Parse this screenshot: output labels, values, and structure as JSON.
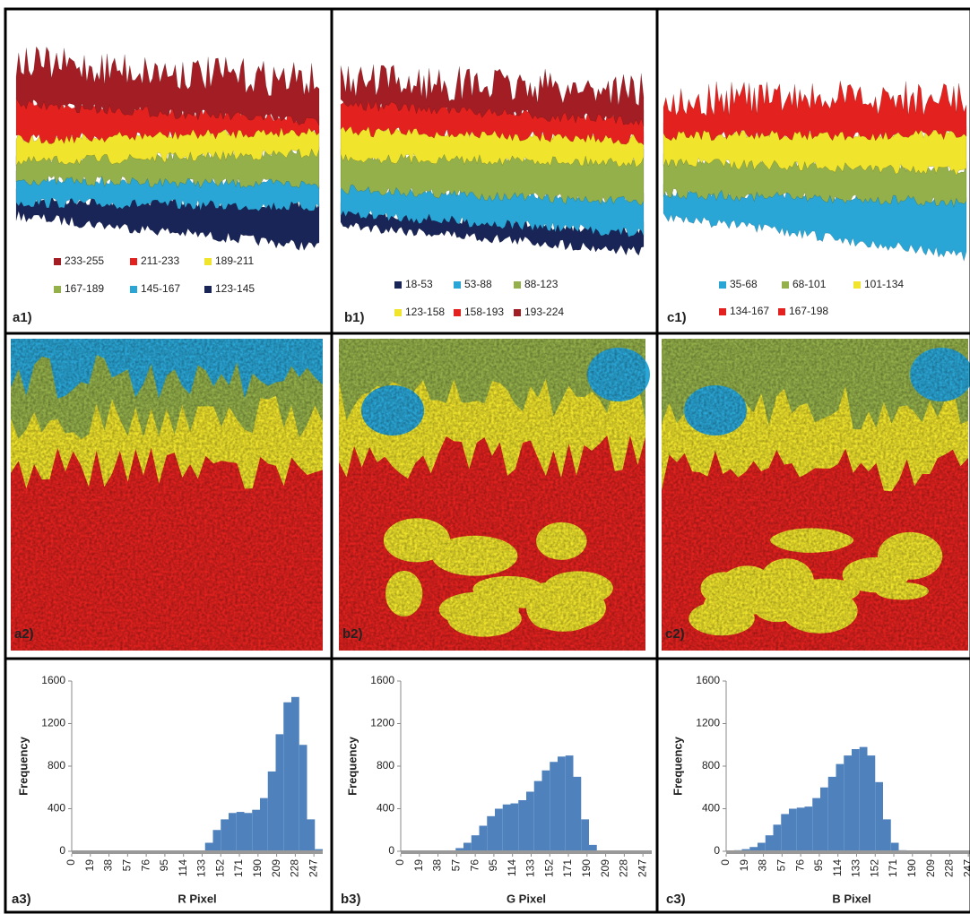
{
  "surface_plots": [
    {
      "label": "a1)",
      "legend": [
        {
          "name": "233-255",
          "color": "#a31d24"
        },
        {
          "name": "211-233",
          "color": "#e3221f"
        },
        {
          "name": "189-211",
          "color": "#f0e42c"
        },
        {
          "name": "167-189",
          "color": "#94b04a"
        },
        {
          "name": "145-167",
          "color": "#2aa6d6"
        },
        {
          "name": "123-145",
          "color": "#1a2557"
        }
      ]
    },
    {
      "label": "b1)",
      "legend": [
        {
          "name": "18-53",
          "color": "#1a2557"
        },
        {
          "name": "53-88",
          "color": "#2aa6d6"
        },
        {
          "name": "88-123",
          "color": "#94b04a"
        },
        {
          "name": "123-158",
          "color": "#f0e42c"
        },
        {
          "name": "158-193",
          "color": "#e3221f"
        },
        {
          "name": "193-224",
          "color": "#a31d24"
        }
      ]
    },
    {
      "label": "c1)",
      "legend": [
        {
          "name": "35-68",
          "color": "#2aa6d6"
        },
        {
          "name": "68-101",
          "color": "#94b04a"
        },
        {
          "name": "101-134",
          "color": "#f0e42c"
        },
        {
          "name": "134-167",
          "color": "#e3221f"
        },
        {
          "name": "167-198",
          "color": "#e3221f"
        }
      ]
    }
  ],
  "images": [
    {
      "label": "a2)"
    },
    {
      "label": "b2)"
    },
    {
      "label": "c2)"
    }
  ],
  "chart_data": [
    {
      "type": "histogram",
      "label": "a3)",
      "x_label": "R Pixel",
      "y_label": "Frequency",
      "color": "#4f81bd",
      "bins": [
        0,
        8,
        16,
        24,
        32,
        40,
        48,
        56,
        64,
        72,
        80,
        88,
        96,
        104,
        112,
        120,
        128,
        136,
        144,
        152,
        160,
        168,
        176,
        184,
        192,
        200,
        208,
        216,
        224,
        232,
        240,
        248,
        256
      ],
      "values": [
        0,
        0,
        0,
        0,
        0,
        0,
        0,
        0,
        0,
        0,
        0,
        0,
        0,
        0,
        0,
        0,
        5,
        80,
        200,
        300,
        360,
        370,
        360,
        390,
        500,
        750,
        1100,
        1400,
        1450,
        1000,
        300,
        20
      ],
      "xlim": [
        0,
        256
      ],
      "xticks": [
        0,
        19,
        38,
        57,
        76,
        95,
        114,
        133,
        152,
        171,
        190,
        209,
        228,
        247
      ],
      "ylim": [
        0,
        1600
      ],
      "yticks": [
        0,
        400,
        800,
        1200,
        1600
      ]
    },
    {
      "type": "histogram",
      "label": "b3)",
      "x_label": "G Pixel",
      "y_label": "Frequency",
      "color": "#4f81bd",
      "bins": [
        0,
        8,
        16,
        24,
        32,
        40,
        48,
        56,
        64,
        72,
        80,
        88,
        96,
        104,
        112,
        120,
        128,
        136,
        144,
        152,
        160,
        168,
        176,
        184,
        192,
        200,
        208,
        216,
        224,
        232,
        240,
        248,
        256
      ],
      "values": [
        0,
        0,
        0,
        0,
        0,
        0,
        5,
        30,
        80,
        150,
        240,
        330,
        400,
        440,
        450,
        480,
        560,
        660,
        760,
        840,
        890,
        900,
        700,
        300,
        60,
        5,
        0,
        0,
        0,
        0,
        0,
        0
      ],
      "xlim": [
        0,
        256
      ],
      "xticks": [
        0,
        19,
        38,
        57,
        76,
        95,
        114,
        133,
        152,
        171,
        190,
        209,
        228,
        247
      ],
      "ylim": [
        0,
        1600
      ],
      "yticks": [
        0,
        400,
        800,
        1200,
        1600
      ]
    },
    {
      "type": "histogram",
      "label": "c3)",
      "x_label": "B Pixel",
      "y_label": "Frequency",
      "color": "#4f81bd",
      "bins": [
        0,
        8,
        16,
        24,
        32,
        40,
        48,
        56,
        64,
        72,
        80,
        88,
        96,
        104,
        112,
        120,
        128,
        136,
        144,
        152,
        160,
        168,
        176,
        184,
        192,
        200,
        208,
        216,
        224,
        232,
        240,
        248,
        256
      ],
      "values": [
        5,
        10,
        20,
        40,
        80,
        150,
        250,
        350,
        400,
        410,
        420,
        500,
        600,
        700,
        820,
        900,
        960,
        980,
        900,
        650,
        300,
        80,
        10,
        0,
        0,
        0,
        0,
        0,
        0,
        0,
        0,
        0
      ],
      "xlim": [
        0,
        256
      ],
      "xticks": [
        0,
        19,
        38,
        57,
        76,
        95,
        114,
        133,
        152,
        171,
        190,
        209,
        228,
        247
      ],
      "ylim": [
        0,
        1600
      ],
      "yticks": [
        0,
        400,
        800,
        1200,
        1600
      ]
    }
  ]
}
